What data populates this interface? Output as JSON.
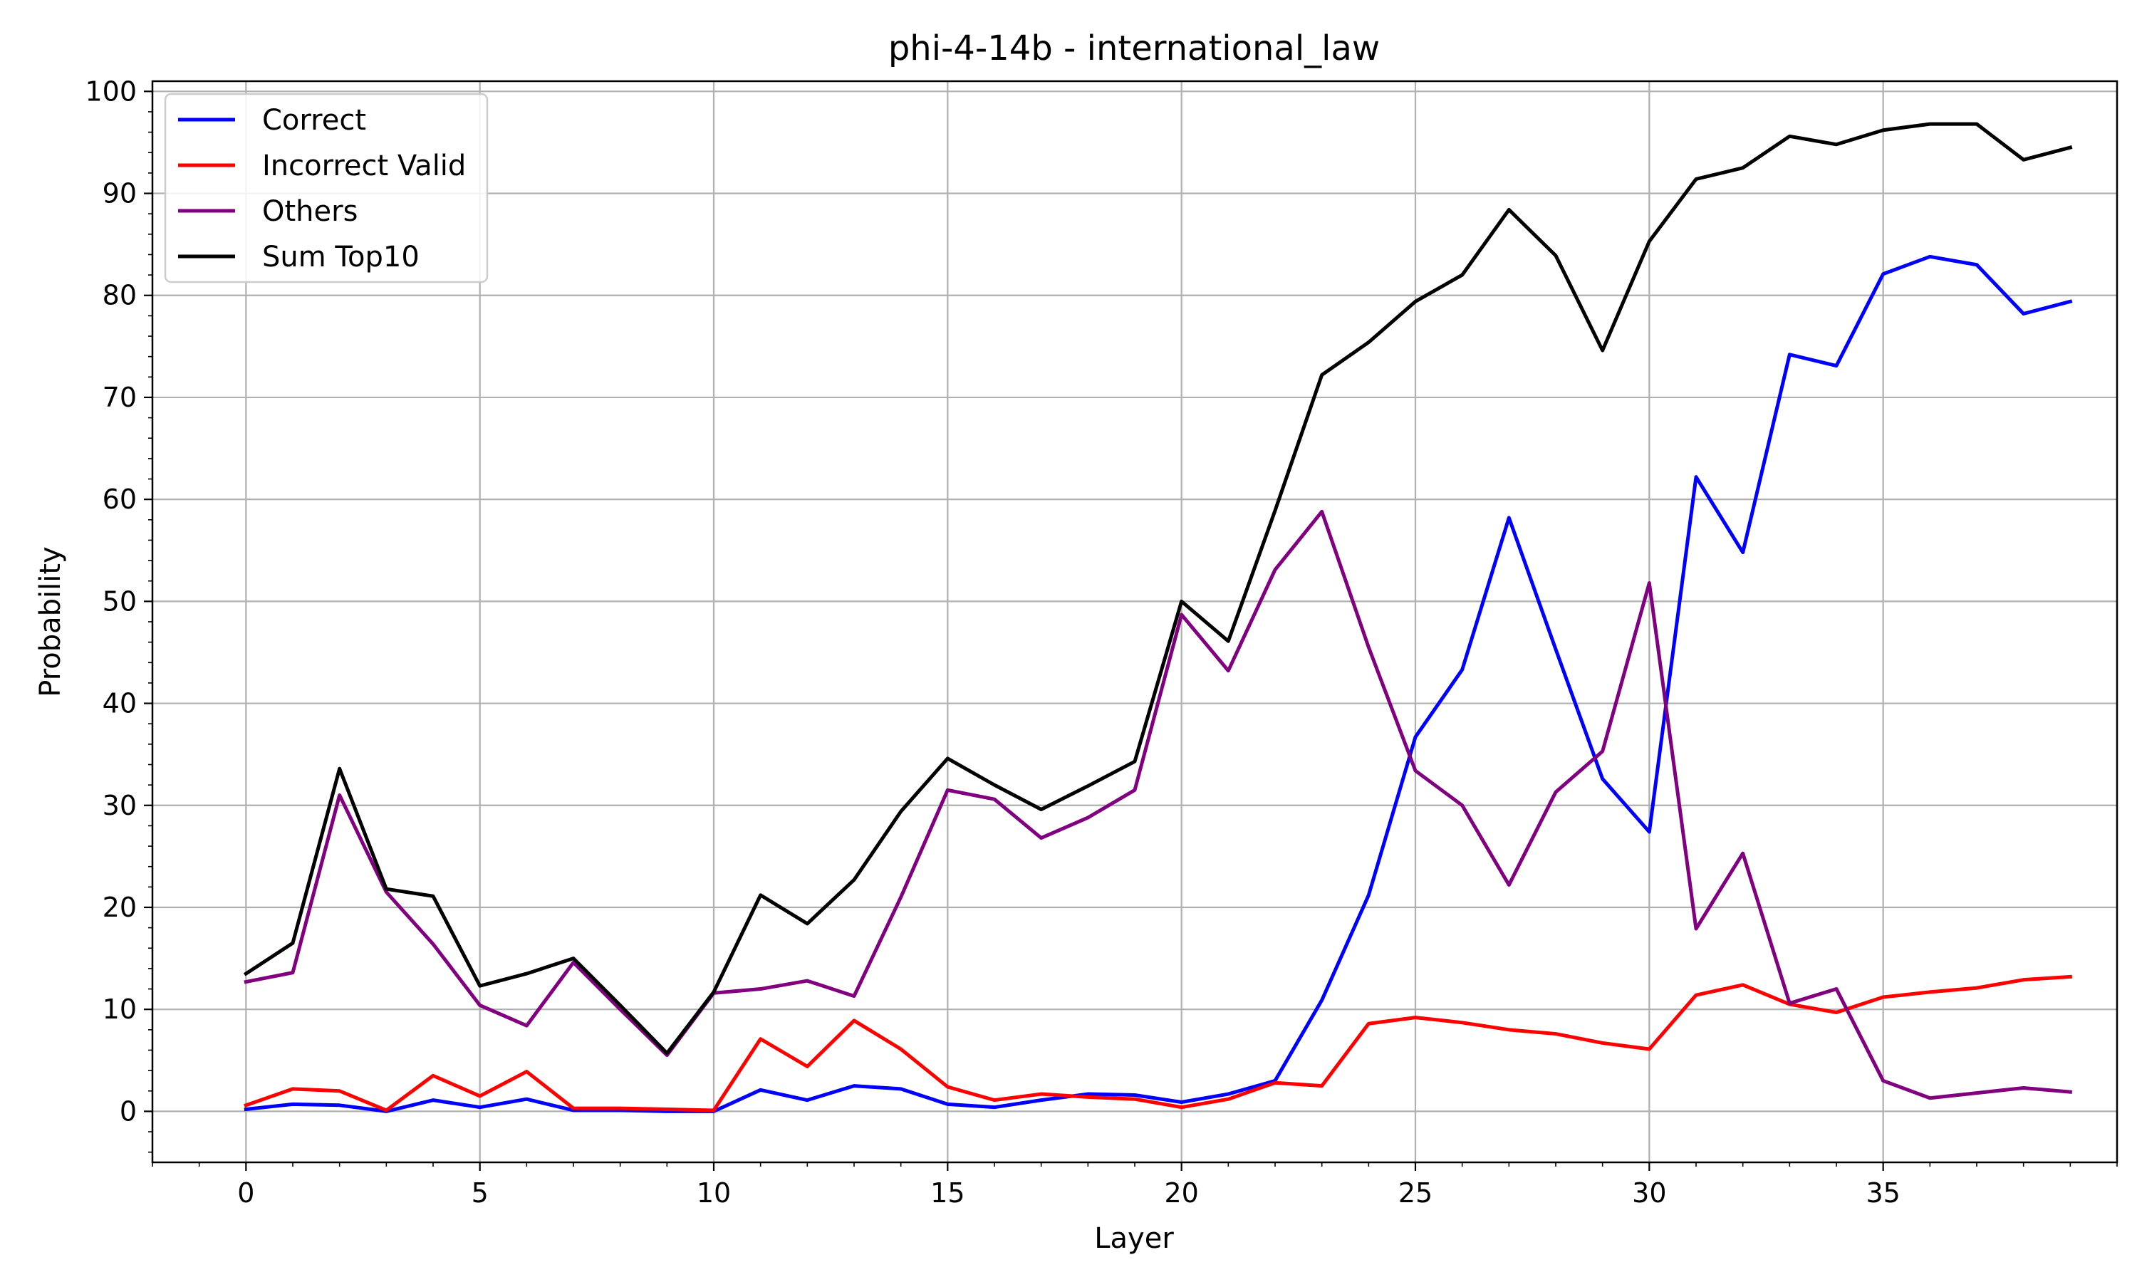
{
  "chart_data": {
    "type": "line",
    "title": "phi-4-14b - international_law",
    "xlabel": "Layer",
    "ylabel": "Probability",
    "xlim": [
      -2,
      40
    ],
    "ylim": [
      -5,
      101
    ],
    "xticks": [
      0,
      5,
      10,
      15,
      20,
      25,
      30,
      35
    ],
    "yticks": [
      0,
      10,
      20,
      30,
      40,
      50,
      60,
      70,
      80,
      90,
      100
    ],
    "grid": true,
    "legend_position": "top-left",
    "x": [
      0,
      1,
      2,
      3,
      4,
      5,
      6,
      7,
      8,
      9,
      10,
      11,
      12,
      13,
      14,
      15,
      16,
      17,
      18,
      19,
      20,
      21,
      22,
      23,
      24,
      25,
      26,
      27,
      28,
      29,
      30,
      31,
      32,
      33,
      34,
      35,
      36,
      37,
      38,
      39
    ],
    "series": [
      {
        "name": "Correct",
        "color": "#0000ff",
        "values": [
          0.2,
          0.7,
          0.6,
          0.0,
          1.1,
          0.4,
          1.2,
          0.1,
          0.1,
          0.0,
          0.0,
          2.1,
          1.1,
          2.5,
          2.2,
          0.7,
          0.4,
          1.1,
          1.7,
          1.6,
          0.9,
          1.7,
          3.0,
          10.9,
          21.2,
          36.7,
          43.3,
          58.2,
          45.3,
          32.6,
          27.4,
          62.2,
          54.8,
          74.2,
          73.1,
          82.1,
          83.8,
          83.0,
          78.2,
          79.4
        ]
      },
      {
        "name": "Incorrect Valid",
        "color": "#ff0000",
        "values": [
          0.6,
          2.2,
          2.0,
          0.1,
          3.5,
          1.5,
          3.9,
          0.3,
          0.3,
          0.2,
          0.1,
          7.1,
          4.4,
          8.9,
          6.1,
          2.4,
          1.1,
          1.7,
          1.4,
          1.2,
          0.4,
          1.2,
          2.8,
          2.5,
          8.6,
          9.2,
          8.7,
          8.0,
          7.6,
          6.7,
          6.1,
          11.4,
          12.4,
          10.5,
          9.7,
          11.2,
          11.7,
          12.1,
          12.9,
          13.2
        ]
      },
      {
        "name": "Others",
        "color": "#800080",
        "values": [
          12.7,
          13.6,
          31.0,
          21.5,
          16.4,
          10.4,
          8.4,
          14.6,
          10.0,
          5.5,
          11.6,
          12.0,
          12.8,
          11.3,
          21.0,
          31.5,
          30.6,
          26.8,
          28.8,
          31.5,
          48.7,
          43.2,
          53.1,
          58.8,
          45.5,
          33.4,
          30.0,
          22.2,
          31.3,
          35.3,
          51.8,
          17.9,
          25.3,
          10.6,
          12.0,
          3.0,
          1.3,
          1.8,
          2.3,
          1.9
        ]
      },
      {
        "name": "Sum Top10",
        "color": "#000000",
        "values": [
          13.5,
          16.5,
          33.6,
          21.8,
          21.1,
          12.3,
          13.5,
          15.0,
          10.4,
          5.7,
          11.7,
          21.2,
          18.4,
          22.7,
          29.4,
          34.6,
          32.0,
          29.6,
          31.9,
          34.3,
          50.0,
          46.1,
          58.9,
          72.2,
          75.4,
          79.4,
          82.0,
          88.4,
          83.9,
          74.6,
          85.3,
          91.4,
          92.5,
          95.6,
          94.8,
          96.2,
          96.8,
          96.8,
          93.3,
          94.5
        ]
      }
    ]
  }
}
